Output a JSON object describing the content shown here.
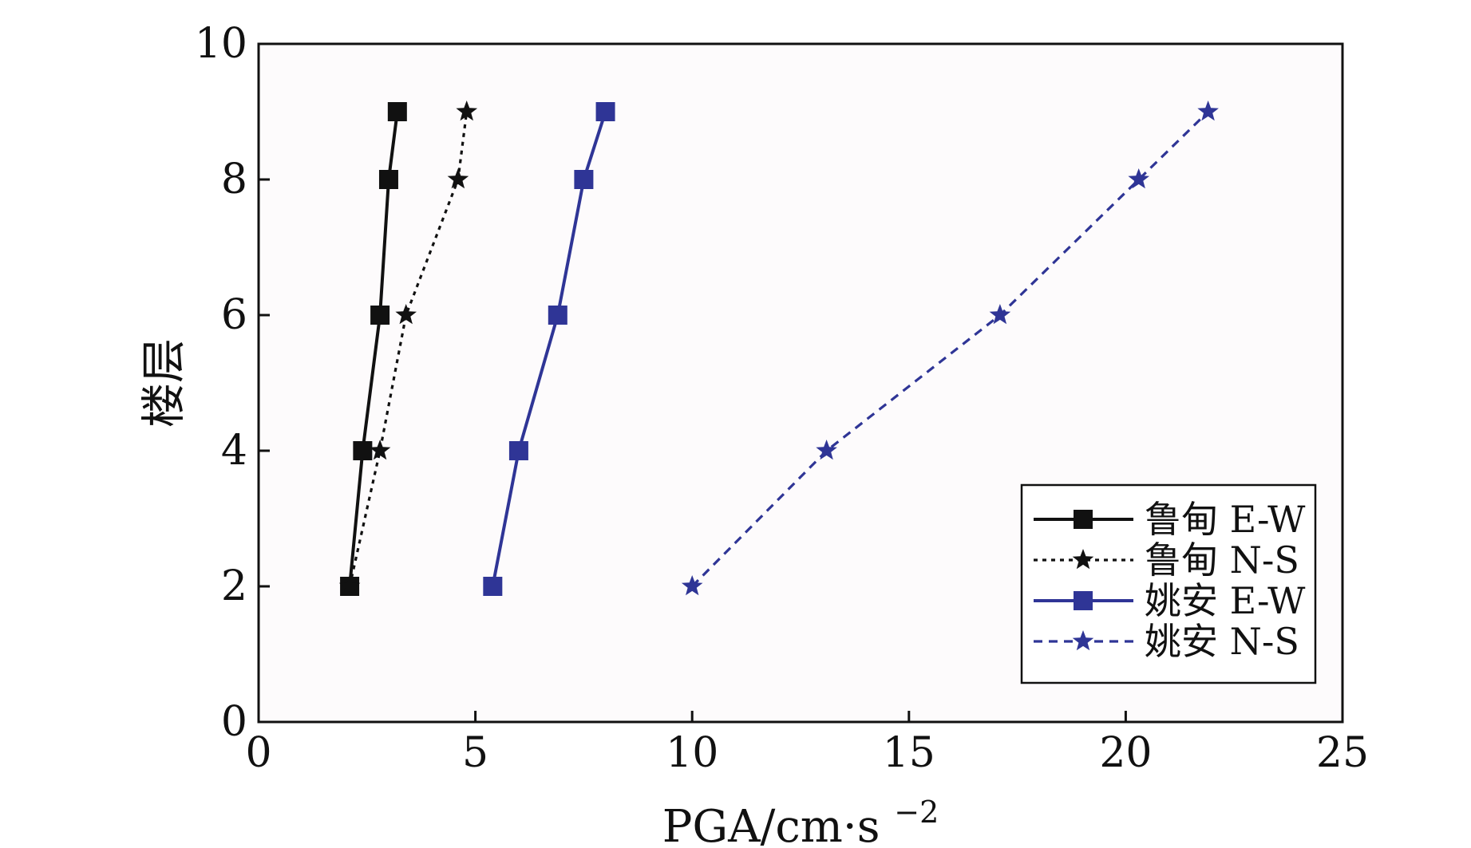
{
  "chart_data": {
    "type": "line",
    "title": "",
    "xlabel": "PGA/cm·s",
    "xlabel_sup": "−2",
    "ylabel": "楼层",
    "xlim": [
      0,
      25
    ],
    "ylim": [
      0,
      10
    ],
    "xticks": [
      0,
      5,
      10,
      15,
      20,
      25
    ],
    "yticks": [
      0,
      2,
      4,
      6,
      8,
      10
    ],
    "grid": false,
    "legend_position": "bottom-right",
    "series": [
      {
        "name": "鲁甸 E-W",
        "marker": "square",
        "linestyle": "solid",
        "color": "#111111",
        "points": [
          {
            "x": 2.1,
            "y": 2
          },
          {
            "x": 2.4,
            "y": 4
          },
          {
            "x": 2.8,
            "y": 6
          },
          {
            "x": 3.0,
            "y": 8
          },
          {
            "x": 3.2,
            "y": 9
          }
        ]
      },
      {
        "name": "鲁甸 N-S",
        "marker": "star",
        "linestyle": "dotted",
        "color": "#111111",
        "points": [
          {
            "x": 2.1,
            "y": 2
          },
          {
            "x": 2.8,
            "y": 4
          },
          {
            "x": 3.4,
            "y": 6
          },
          {
            "x": 4.6,
            "y": 8
          },
          {
            "x": 4.8,
            "y": 9
          }
        ]
      },
      {
        "name": "姚安 E-W",
        "marker": "square",
        "linestyle": "solid",
        "color": "#2f3596",
        "points": [
          {
            "x": 5.4,
            "y": 2
          },
          {
            "x": 6.0,
            "y": 4
          },
          {
            "x": 6.9,
            "y": 6
          },
          {
            "x": 7.5,
            "y": 8
          },
          {
            "x": 8.0,
            "y": 9
          }
        ]
      },
      {
        "name": "姚安 N-S",
        "marker": "star",
        "linestyle": "dashed",
        "color": "#2f3596",
        "points": [
          {
            "x": 10.0,
            "y": 2
          },
          {
            "x": 13.1,
            "y": 4
          },
          {
            "x": 17.1,
            "y": 6
          },
          {
            "x": 20.3,
            "y": 8
          },
          {
            "x": 21.9,
            "y": 9
          }
        ]
      }
    ]
  }
}
